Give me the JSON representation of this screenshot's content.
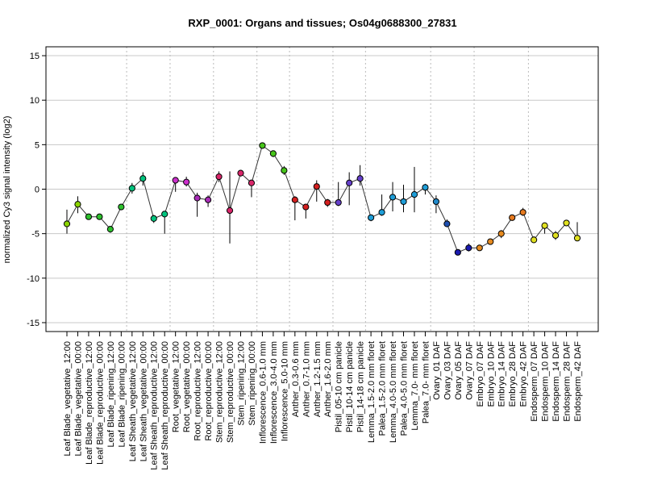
{
  "chart_data": {
    "type": "line",
    "title": "RXP_0001: Organs and tissues; Os04g0688300_27831",
    "xlabel": "",
    "ylabel": "normalized Cy3 signal intensity (log2)",
    "ylim": [
      -16,
      16
    ],
    "yticks": [
      -15,
      -10,
      -5,
      0,
      5,
      10,
      15
    ],
    "grid": "horizontal at y ticks; vertical dotted separators between tissue groups",
    "categories": [
      "Leaf Blade_vegetative_12:00",
      "Leaf Blade_vegetative_00:00",
      "Leaf Blade_reproductive_12:00",
      "Leaf Blade_reproductive_00:00",
      "Leaf Blade_ripening_12:00",
      "Leaf Blade_ripening_00:00",
      "Leaf Sheath_vegetative_12:00",
      "Leaf Sheath_vegetative_00:00",
      "Leaf Sheath_reproductive_12:00",
      "Leaf Sheath_reproductive_00:00",
      "Root_vegetative_12:00",
      "Root_vegetative_00:00",
      "Root_reproductive_12:00",
      "Root_reproductive_00:00",
      "Stem_reproductive_12:00",
      "Stem_reproductive_00:00",
      "Stem_ripening_12:00",
      "Stem_ripening_00:00",
      "Inflorescence_0.6-1.0 mm",
      "Inflorescence_3.0-4.0 mm",
      "Inflorescence_5.0-10 mm",
      "Anther_0.3-0.6 mm",
      "Anther_0.7-1.0 mm",
      "Anther_1.2-1.5 mm",
      "Anther_1.6-2.0 mm",
      "Pistil_05-10 cm panicle",
      "Pistil_10-14 cm panicle",
      "Pistil_14-18 cm panicle",
      "Lemma_1.5-2.0 mm floret",
      "Palea_1.5-2.0 mm floret",
      "Lemma_4.0-5.0 mm floret",
      "Palea_4.0-5.0 mm floret",
      "Lemma_7.0- mm floret",
      "Palea_7.0- mm floret",
      "Ovary_01 DAF",
      "Ovary_03 DAF",
      "Ovary_05 DAF",
      "Ovary_07 DAF",
      "Embryo_07 DAF",
      "Embryo_10 DAF",
      "Embryo_14 DAF",
      "Embryo_28 DAF",
      "Embryo_42 DAF",
      "Endosperm_07 DAF",
      "Endosperm_10 DAF",
      "Endosperm_14 DAF",
      "Endosperm_28 DAF",
      "Endosperm_42 DAF"
    ],
    "values": [
      -3.9,
      -1.7,
      -3.1,
      -3.1,
      -4.5,
      -2.0,
      0.1,
      1.2,
      -3.3,
      -2.8,
      1.0,
      0.8,
      -1.0,
      -1.2,
      1.4,
      -2.4,
      1.8,
      0.7,
      4.9,
      4.0,
      2.1,
      -1.2,
      -2.0,
      0.3,
      -1.5,
      -1.5,
      0.7,
      1.2,
      -3.2,
      -2.6,
      -0.9,
      -1.4,
      -0.6,
      0.2,
      -1.4,
      -3.9,
      -7.1,
      -6.6,
      -6.6,
      -5.9,
      -5.0,
      -3.2,
      -2.6,
      -5.7,
      -4.1,
      -5.2,
      -3.8,
      -5.5
    ],
    "err_low": [
      -5.0,
      -2.7,
      -3.4,
      -3.3,
      -4.9,
      -2.3,
      -0.5,
      0.4,
      -3.8,
      -5.0,
      -0.3,
      0.3,
      -3.1,
      -2.0,
      0.8,
      -6.1,
      1.5,
      -0.9,
      4.6,
      3.6,
      1.6,
      -3.5,
      -3.3,
      -1.4,
      -2.0,
      -1.9,
      -1.8,
      0.4,
      -3.6,
      -3.0,
      -2.5,
      -2.6,
      -2.6,
      -0.6,
      -2.7,
      -4.2,
      -7.3,
      -7.0,
      -6.8,
      -6.1,
      -5.5,
      -3.4,
      -3.0,
      -6.0,
      -5.0,
      -5.7,
      -4.1,
      -5.8
    ],
    "err_high": [
      -2.3,
      -0.8,
      -2.9,
      -2.9,
      -4.2,
      -1.7,
      0.7,
      1.9,
      -2.9,
      -2.5,
      1.3,
      1.4,
      -0.4,
      -0.7,
      2.0,
      2.0,
      2.1,
      1.0,
      5.1,
      4.3,
      2.6,
      -0.8,
      -1.7,
      1.0,
      -1.1,
      0.8,
      1.9,
      2.7,
      -2.9,
      -0.6,
      0.8,
      0.5,
      2.5,
      0.6,
      -0.7,
      -3.4,
      -6.9,
      -6.1,
      -6.4,
      -5.6,
      -4.6,
      -3.0,
      -2.1,
      -5.3,
      -3.9,
      -4.7,
      -3.5,
      -3.7
    ],
    "colors": [
      "#8bd400",
      "#8bd400",
      "#2ec02e",
      "#2ec02e",
      "#2ec02e",
      "#2ec02e",
      "#00c47e",
      "#00c47e",
      "#00c47e",
      "#00c47e",
      "#cc2ecc",
      "#cc2ecc",
      "#aa2db8",
      "#aa2db8",
      "#d9266a",
      "#d9266a",
      "#d9266a",
      "#d9266a",
      "#46c41a",
      "#46c41a",
      "#46c41a",
      "#d42020",
      "#d42020",
      "#d42020",
      "#d42020",
      "#6640cc",
      "#6640cc",
      "#6640cc",
      "#1f9ed8",
      "#1f9ed8",
      "#1f9ed8",
      "#1f9ed8",
      "#1f9ed8",
      "#1f9ed8",
      "#1f88c9",
      "#1f4fb0",
      "#1a1ab0",
      "#1a1ab0",
      "#e68a1f",
      "#e68a1f",
      "#e68a1f",
      "#e67a1f",
      "#e67a1f",
      "#e0e020",
      "#e0e020",
      "#e0e020",
      "#e0e020",
      "#e0e020"
    ],
    "group_separators_after": [
      5,
      9,
      13,
      17,
      20,
      24,
      27,
      33,
      37,
      42
    ]
  }
}
